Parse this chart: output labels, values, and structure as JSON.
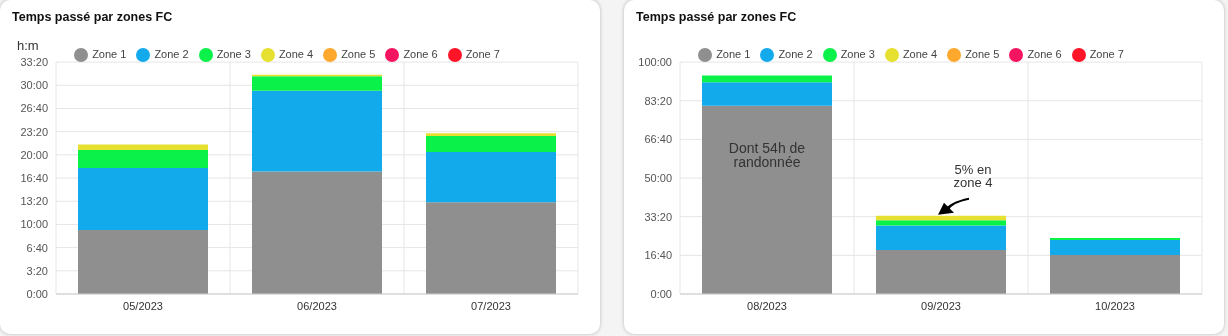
{
  "chart_data": [
    {
      "type": "bar",
      "title": "Temps passé par zones FC",
      "ylabel": "h:m",
      "stacked": true,
      "categories": [
        "05/2023",
        "06/2023",
        "07/2023"
      ],
      "series": [
        {
          "name": "Zone 1",
          "color": "#8f8f8f",
          "values": [
            9.2,
            17.6,
            13.2
          ]
        },
        {
          "name": "Zone 2",
          "color": "#12aaeb",
          "values": [
            8.9,
            11.6,
            7.2
          ]
        },
        {
          "name": "Zone 3",
          "color": "#0af24a",
          "values": [
            2.6,
            2.1,
            2.3
          ]
        },
        {
          "name": "Zone 4",
          "color": "#e6e030",
          "values": [
            0.8,
            0.2,
            0.4
          ]
        },
        {
          "name": "Zone 5",
          "color": "#ffa82e",
          "values": [
            0,
            0,
            0
          ]
        },
        {
          "name": "Zone 6",
          "color": "#f5145f",
          "values": [
            0,
            0,
            0
          ]
        },
        {
          "name": "Zone 7",
          "color": "#ff1428",
          "values": [
            0,
            0,
            0
          ]
        }
      ],
      "ylim": [
        0,
        33.333333
      ],
      "yticks": [
        {
          "value": 0,
          "label": "0:00"
        },
        {
          "value": 3.333333,
          "label": "3:20"
        },
        {
          "value": 6.666667,
          "label": "6:40"
        },
        {
          "value": 10,
          "label": "10:00"
        },
        {
          "value": 13.333333,
          "label": "13:20"
        },
        {
          "value": 16.666667,
          "label": "16:40"
        },
        {
          "value": 20,
          "label": "20:00"
        },
        {
          "value": 23.333333,
          "label": "23:20"
        },
        {
          "value": 26.666667,
          "label": "26:40"
        },
        {
          "value": 30,
          "label": "30:00"
        },
        {
          "value": 33.333333,
          "label": "33:20"
        }
      ],
      "grid": true,
      "legend": "top"
    },
    {
      "type": "bar",
      "title": "Temps passé par zones FC",
      "stacked": true,
      "categories": [
        "08/2023",
        "09/2023",
        "10/2023"
      ],
      "series": [
        {
          "name": "Zone 1",
          "color": "#8f8f8f",
          "values": [
            81.2,
            19.0,
            16.8
          ]
        },
        {
          "name": "Zone 2",
          "color": "#12aaeb",
          "values": [
            10.1,
            10.5,
            6.5
          ]
        },
        {
          "name": "Zone 3",
          "color": "#0af24a",
          "values": [
            2.9,
            2.3,
            0.9
          ]
        },
        {
          "name": "Zone 4",
          "color": "#e6e030",
          "values": [
            0,
            1.9,
            0
          ]
        },
        {
          "name": "Zone 5",
          "color": "#ffa82e",
          "values": [
            0,
            0,
            0
          ]
        },
        {
          "name": "Zone 6",
          "color": "#f5145f",
          "values": [
            0,
            0,
            0
          ]
        },
        {
          "name": "Zone 7",
          "color": "#ff1428",
          "values": [
            0,
            0,
            0
          ]
        }
      ],
      "ylim": [
        0,
        100
      ],
      "yticks": [
        {
          "value": 0,
          "label": "0:00"
        },
        {
          "value": 16.666667,
          "label": "16:40"
        },
        {
          "value": 33.333333,
          "label": "33:20"
        },
        {
          "value": 50,
          "label": "50:00"
        },
        {
          "value": 66.666667,
          "label": "66:40"
        },
        {
          "value": 83.333333,
          "label": "83:20"
        },
        {
          "value": 100,
          "label": "100:00"
        }
      ],
      "annotations": [
        "Dont 54h de randonnée",
        {
          "text": "5% en zone 4",
          "x": "09/2023",
          "y": 33.7
        }
      ],
      "grid": true,
      "legend": "top"
    }
  ]
}
